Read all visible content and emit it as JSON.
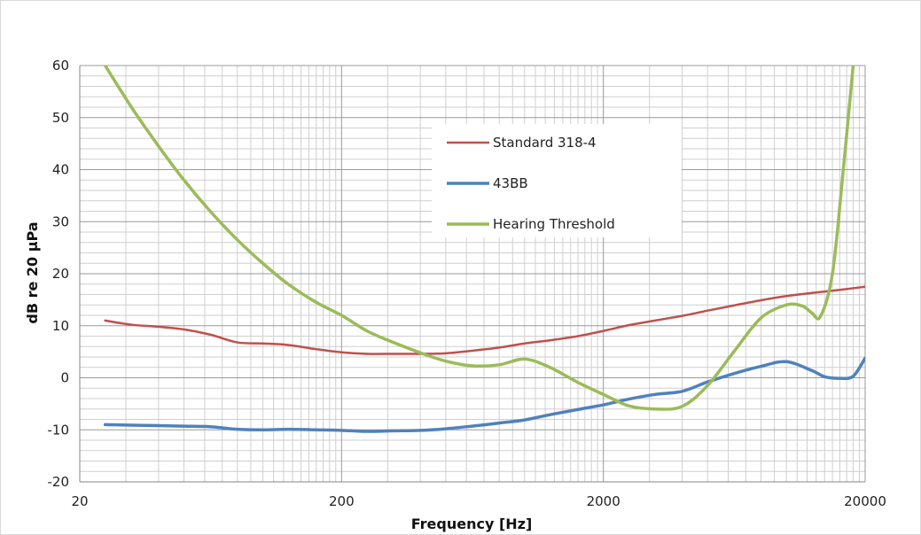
{
  "chart_data": {
    "type": "line",
    "title": "",
    "xlabel": "Frequency [Hz]",
    "ylabel": "dB re 20 µPa",
    "xscale": "log",
    "xlim": [
      20,
      20000
    ],
    "ylim": [
      -20,
      60
    ],
    "x_ticks": [
      20,
      200,
      2000,
      20000
    ],
    "x_tick_labels": [
      "20",
      "200",
      "2000",
      "20000"
    ],
    "y_ticks": [
      -20,
      -10,
      0,
      10,
      20,
      30,
      40,
      50,
      60
    ],
    "y_tick_labels": [
      "-20",
      "-10",
      "0",
      "10",
      "20",
      "30",
      "40",
      "50",
      "60"
    ],
    "grid": true,
    "legend": "inside-top-center",
    "series": [
      {
        "name": "Standard 318-4",
        "color": "#c0504d",
        "line_width": 2.5,
        "x": [
          25,
          31.5,
          40,
          50,
          63,
          80,
          100,
          125,
          160,
          200,
          250,
          315,
          400,
          500,
          630,
          800,
          1000,
          1250,
          1600,
          2000,
          2500,
          3150,
          4000,
          5000,
          6300,
          8000,
          10000,
          12500,
          16000,
          20000
        ],
        "y": [
          11,
          10.2,
          9.8,
          9.3,
          8.3,
          6.8,
          6.6,
          6.3,
          5.5,
          4.9,
          4.6,
          4.6,
          4.6,
          4.7,
          5.2,
          5.8,
          6.6,
          7.2,
          8,
          9,
          10.1,
          11,
          11.9,
          12.9,
          13.9,
          14.9,
          15.7,
          16.3,
          16.9,
          17.5
        ]
      },
      {
        "name": "43BB",
        "color": "#4f81bd",
        "line_width": 3.5,
        "x": [
          25,
          31.5,
          40,
          50,
          63,
          80,
          100,
          125,
          160,
          200,
          250,
          315,
          400,
          500,
          630,
          800,
          1000,
          1250,
          1600,
          2000,
          2500,
          3150,
          4000,
          5000,
          6300,
          8000,
          10000,
          12500,
          14000,
          16000,
          18000,
          20000
        ],
        "y": [
          -9,
          -9.1,
          -9.2,
          -9.3,
          -9.4,
          -9.9,
          -10,
          -9.9,
          -10,
          -10.1,
          -10.3,
          -10.2,
          -10.1,
          -9.8,
          -9.3,
          -8.7,
          -8.1,
          -7.1,
          -6.1,
          -5.2,
          -4.1,
          -3.2,
          -2.6,
          -0.8,
          0.8,
          2.2,
          3.1,
          1.4,
          0.2,
          -0.1,
          0.3,
          3.8
        ]
      },
      {
        "name": "Hearing Threshold",
        "color": "#9bbb59",
        "line_width": 3.5,
        "x": [
          25,
          31.5,
          40,
          50,
          63,
          80,
          100,
          125,
          160,
          200,
          250,
          315,
          400,
          500,
          630,
          800,
          1000,
          1250,
          1600,
          2000,
          2500,
          3150,
          4000,
          5000,
          6300,
          8000,
          10000,
          11500,
          12500,
          13500,
          15000,
          16500,
          18000
        ],
        "y": [
          60,
          52,
          44.5,
          38,
          32,
          26.5,
          22,
          18,
          14.5,
          12,
          9,
          6.8,
          4.8,
          3.2,
          2.3,
          2.5,
          3.6,
          2,
          -0.9,
          -3.2,
          -5.4,
          -6,
          -5.5,
          -1.5,
          5,
          11.5,
          14,
          13.8,
          12.5,
          11.8,
          20,
          40,
          60
        ]
      }
    ]
  }
}
